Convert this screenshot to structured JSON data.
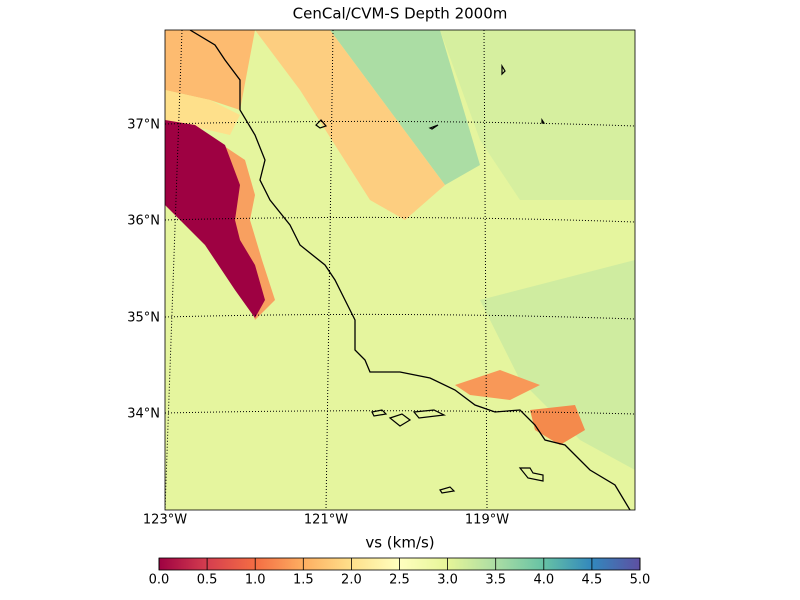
{
  "title": "CenCal/CVM-S Depth 2000m",
  "map": {
    "lat_labels": [
      "37°N",
      "36°N",
      "35°N",
      "34°N"
    ],
    "lon_labels": [
      "123°W",
      "121°W",
      "119°W"
    ]
  },
  "colorbar": {
    "label": "vs (km/s)",
    "range": [
      0,
      5
    ],
    "ticks": [
      {
        "value": 0,
        "label": "0.0"
      },
      {
        "value": 0.5,
        "label": "0.5"
      },
      {
        "value": 1,
        "label": "1.0"
      },
      {
        "value": 1.5,
        "label": "1.5"
      },
      {
        "value": 2,
        "label": "2.0"
      },
      {
        "value": 2.5,
        "label": "2.5"
      },
      {
        "value": 3,
        "label": "3.0"
      },
      {
        "value": 3.5,
        "label": "3.5"
      },
      {
        "value": 4,
        "label": "4.0"
      },
      {
        "value": 4.5,
        "label": "4.5"
      },
      {
        "value": 5,
        "label": "5.0"
      }
    ]
  }
}
